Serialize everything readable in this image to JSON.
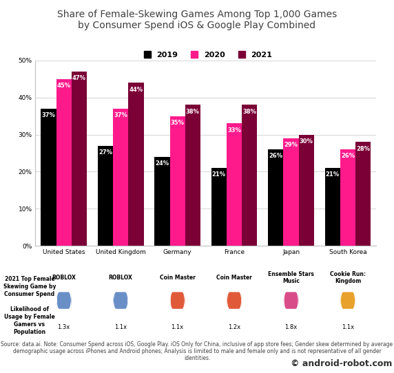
{
  "chart_data": {
    "type": "bar",
    "title": "Share of Female-Skewing Games Among Top 1,000 Games\nby Consumer Spend iOS & Google Play Combined",
    "categories": [
      "United States",
      "United Kingdom",
      "Germany",
      "France",
      "Japan",
      "South Korea"
    ],
    "series": [
      {
        "name": "2019",
        "color": "#000000",
        "values": [
          37,
          27,
          24,
          21,
          26,
          21
        ],
        "value_labels": [
          "37%",
          "27%",
          "24%",
          "21%",
          "26%",
          "21%"
        ]
      },
      {
        "name": "2020",
        "color": "#ff1a8c",
        "values": [
          45,
          37,
          35,
          33,
          29,
          26
        ],
        "value_labels": [
          "45%",
          "37%",
          "35%",
          "33%",
          "29%",
          "26%"
        ]
      },
      {
        "name": "2021",
        "color": "#7a0036",
        "values": [
          47,
          44,
          38,
          38,
          30,
          28
        ],
        "value_labels": [
          "47%",
          "44%",
          "38%",
          "38%",
          "30%",
          "28%"
        ]
      }
    ],
    "ylim": [
      0,
      50
    ],
    "yticks": [
      {
        "value": 0,
        "label": "0%"
      },
      {
        "value": 10,
        "label": "10%"
      },
      {
        "value": 20,
        "label": "20%"
      },
      {
        "value": 30,
        "label": "30%"
      },
      {
        "value": 40,
        "label": "40%"
      },
      {
        "value": 50,
        "label": "50%"
      }
    ],
    "grid": true,
    "legend": "upper center",
    "data_labels": true
  },
  "footer": {
    "row_labels": [
      "2021 Top Female\nSkewing Game by\nConsumer Spend",
      "Likelihood of\nUsage by Female\nGamers vs\nPopulation"
    ],
    "games": [
      "ROBLOX",
      "ROBLOX",
      "Coin Master",
      "Coin Master",
      "Ensemble Stars\nMusic",
      "Cookie Run:\nKingdom"
    ],
    "likelihood": [
      "1.3x",
      "1.1x",
      "1.1x",
      "1.2x",
      "1.8x",
      "1.1x"
    ]
  },
  "source_note": "Source: data.ai. Note: Consumer Spend across iOS, Google Play. iOS Only for China, inclusive of app store fees; Gender skew determined by average demographic usage across iPhones and Android phones; Analysis is limited to male and female only and is not representative of all gender identities.",
  "watermark": "© android-robot.com"
}
